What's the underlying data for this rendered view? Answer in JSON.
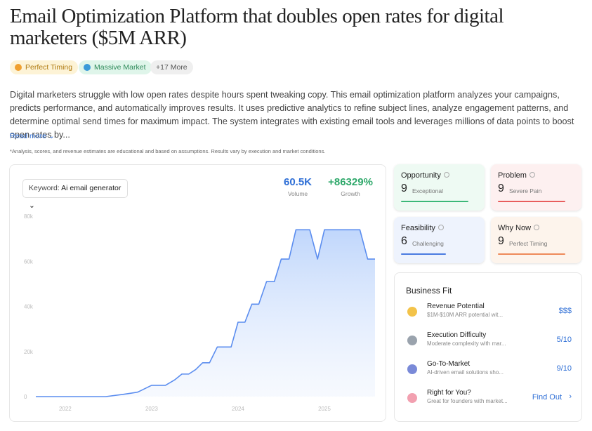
{
  "header": {
    "title": "Email Optimization Platform that doubles open rates for digital marketers ($5M ARR)",
    "badges": [
      "Perfect Timing",
      "Massive Market",
      "+17 More"
    ]
  },
  "description": "Digital marketers struggle with low open rates despite hours spent tweaking copy. This email optimization platform analyzes your campaigns, predicts performance, and automatically improves results. It uses predictive analytics to refine subject lines, analyze engagement patterns, and determine optimal send times for maximum impact. The system integrates with existing email tools and leverages millions of data points to boost open rates by...",
  "read_more": "Read more",
  "disclaimer": "*Analysis, scores, and revenue estimates are educational and based on assumptions. Results vary by execution and market conditions.",
  "keyword": {
    "label": "Keyword:",
    "value": "Ai email generator"
  },
  "stats": [
    {
      "value": "60.5K",
      "label": "Volume"
    },
    {
      "value": "+86329%",
      "label": "Growth"
    }
  ],
  "chart_data": {
    "type": "area",
    "color": "#5b8def",
    "grid": false,
    "x": [
      2021.66,
      2022.47,
      2022.67,
      2022.76,
      2022.84,
      2023.0,
      2023.16,
      2023.27,
      2023.35,
      2023.43,
      2023.51,
      2023.59,
      2023.67,
      2023.76,
      2023.92,
      2024.0,
      2024.08,
      2024.16,
      2024.24,
      2024.33,
      2024.42,
      2024.5,
      2024.59,
      2024.67,
      2024.83,
      2024.92,
      2025.0,
      2025.41,
      2025.5,
      2025.585
    ],
    "values": [
      0,
      0,
      1000,
      1500,
      2000,
      5000,
      5000,
      7500,
      10000,
      10000,
      12000,
      15000,
      15000,
      22000,
      22000,
      33000,
      33000,
      41000,
      41000,
      51000,
      51000,
      61000,
      61000,
      74000,
      74000,
      61000,
      74000,
      74000,
      61000,
      61000
    ],
    "xlim": [
      2021.66,
      2025.585
    ],
    "xticks": [
      2022,
      2023,
      2024,
      2025
    ],
    "ylim": [
      0,
      80000
    ],
    "yticks": [
      0,
      {
        "value": 20000,
        "label": "20k"
      },
      {
        "value": 40000,
        "label": "40k"
      },
      {
        "value": 60000,
        "label": "60k"
      },
      {
        "value": 80000,
        "label": "80k"
      }
    ]
  },
  "scores": [
    {
      "name": "Opportunity",
      "score": 9,
      "label": "Exceptional"
    },
    {
      "name": "Problem",
      "score": 9,
      "label": "Severe Pain"
    },
    {
      "name": "Feasibility",
      "score": 6,
      "label": "Challenging"
    },
    {
      "name": "Why Now",
      "score": 9,
      "label": "Perfect Timing"
    }
  ],
  "business_fit": {
    "title": "Business Fit",
    "items": [
      {
        "name": "Revenue Potential",
        "detail": "$1M-$10M ARR potential wit...",
        "value": "$$$"
      },
      {
        "name": "Execution Difficulty",
        "detail": "Moderate complexity with mar...",
        "value": "5/10"
      },
      {
        "name": "Go-To-Market",
        "detail": "AI-driven email solutions sho...",
        "value": "9/10"
      },
      {
        "name": "Right for You?",
        "detail": "Great for founders with market...",
        "value": "Find Out"
      }
    ]
  }
}
